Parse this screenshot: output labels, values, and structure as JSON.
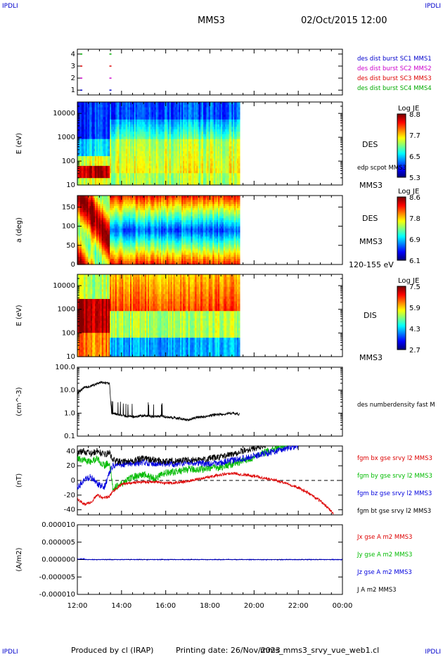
{
  "header": {
    "corner_tl": "IPDLI",
    "corner_tr": "IPDLI",
    "corner_bl": "IPDLI",
    "corner_br": "IPDLI",
    "spacecraft": "MMS3",
    "datetime": "02/Oct/2015 12:00"
  },
  "footer": {
    "produced": "Produced by cl (IRAP)",
    "printing": "Printing date: 26/Nov/2023",
    "file": "mms_mms3_srvy_vue_web1.cl"
  },
  "colors": {
    "mms1": "#0000cc",
    "mms2": "#cc00cc",
    "mms3": "#dd0000",
    "mms4": "#00aa00",
    "bx": "#dd0000",
    "by": "#00bb00",
    "bz": "#0000dd",
    "bt": "#000000"
  },
  "chart_data": [
    {
      "type": "scatter",
      "panel": "burst",
      "yticks": [
        "1",
        "2",
        "3",
        "4"
      ],
      "ylim": [
        0.6,
        4.4
      ],
      "legend": [
        "des dist burst SC1 MMS1",
        "des dist burst SC2 MMS2",
        "des dist burst SC3 MMS3",
        "des dist burst SC4 MMS4"
      ],
      "series": [
        {
          "level": 4,
          "times": [
            12.13,
            13.45
          ]
        },
        {
          "level": 3,
          "times": [
            12.13,
            13.45
          ]
        },
        {
          "level": 2,
          "times": [
            12.13,
            13.45
          ]
        },
        {
          "level": 1,
          "times": [
            12.13,
            13.45
          ]
        }
      ]
    },
    {
      "type": "heatmap",
      "panel": "des-energy",
      "ylabel": "E (eV)",
      "yticks": [
        "10",
        "100",
        "1000",
        "10000"
      ],
      "ylim": [
        10,
        30000
      ],
      "yscale": "log",
      "right_labels": [
        "DES",
        "edp scpot MMS3",
        "MMS3"
      ],
      "colorbar": {
        "title": "Log JE",
        "ticks": [
          "8.8",
          "7.7",
          "6.5",
          "5.3"
        ]
      },
      "data_end": 19.35
    },
    {
      "type": "heatmap",
      "panel": "des-pitch",
      "ylabel": "a (deg)",
      "yticks": [
        "0",
        "50",
        "100",
        "150"
      ],
      "ylim": [
        0,
        180
      ],
      "right_labels": [
        "DES",
        "MMS3",
        "120-155 eV"
      ],
      "colorbar": {
        "title": "Log JE",
        "ticks": [
          "8.6",
          "7.8",
          "6.9",
          "6.1"
        ]
      },
      "data_end": 19.35
    },
    {
      "type": "heatmap",
      "panel": "dis-energy",
      "ylabel": "E (eV)",
      "yticks": [
        "10",
        "100",
        "1000",
        "10000"
      ],
      "ylim": [
        10,
        30000
      ],
      "yscale": "log",
      "right_labels": [
        "DIS",
        "MMS3"
      ],
      "colorbar": {
        "title": "Log JE",
        "ticks": [
          "7.5",
          "5.9",
          "4.3",
          "2.7"
        ]
      },
      "data_end": 19.35
    },
    {
      "type": "line",
      "panel": "density",
      "ylabel": "(cm^-3)",
      "yticks": [
        "0.1",
        "1.0",
        "10.0",
        "100.0"
      ],
      "ylim": [
        0.1,
        100
      ],
      "yscale": "log",
      "legend": [
        "des numberdensity fast M"
      ],
      "series": [
        {
          "x": [
            12.0,
            12.3,
            12.6,
            12.9,
            13.1,
            13.3,
            13.45,
            13.55,
            13.8,
            14.2,
            14.6,
            15.0,
            15.4,
            15.8,
            16.2,
            16.6,
            17.0,
            17.4,
            17.8,
            18.2,
            18.6,
            19.0,
            19.35
          ],
          "y": [
            7,
            13,
            15,
            19,
            22,
            20,
            20,
            1.0,
            0.9,
            0.75,
            0.7,
            0.8,
            0.7,
            0.75,
            0.65,
            0.6,
            0.5,
            0.65,
            0.7,
            0.85,
            0.9,
            1.0,
            0.9
          ]
        }
      ]
    },
    {
      "type": "line",
      "panel": "bfield",
      "ylabel": "(nT)",
      "yticks": [
        "-40",
        "-20",
        "0",
        "20",
        "40"
      ],
      "ylim": [
        -47,
        47
      ],
      "legend": [
        "fgm bx gse srvy l2 MMS3",
        "fgm by gse srvy l2 MMS3",
        "fgm bz gse srvy l2 MMS3",
        "fgm bt gse srvy l2 MMS3"
      ],
      "series": [
        {
          "key": "bx",
          "x": [
            12.0,
            12.3,
            12.6,
            12.9,
            13.2,
            13.45,
            13.6,
            14.0,
            14.5,
            15.0,
            15.5,
            16.0,
            16.5,
            17.0,
            17.5,
            18.0,
            18.5,
            19.0,
            19.5,
            20.0,
            20.5,
            21.0,
            21.5,
            22.0,
            22.5,
            23.0,
            23.3,
            23.6
          ],
          "y": [
            -25,
            -33,
            -30,
            -20,
            -24,
            -22,
            -15,
            -5,
            -3,
            -2,
            -2,
            -4,
            -3,
            -1,
            2,
            5,
            8,
            10,
            8,
            6,
            3,
            0,
            -4,
            -10,
            -18,
            -28,
            -36,
            -46
          ]
        },
        {
          "key": "by",
          "x": [
            12.0,
            12.3,
            12.6,
            12.9,
            13.2,
            13.45,
            13.6,
            14.0,
            14.5,
            15.0,
            15.5,
            16.0,
            16.5,
            17.0,
            17.5,
            18.0,
            18.5,
            19.0,
            19.5,
            20.0,
            20.5,
            21.0,
            21.5
          ],
          "y": [
            30,
            28,
            25,
            30,
            20,
            25,
            -10,
            -5,
            5,
            8,
            3,
            10,
            12,
            15,
            15,
            17,
            18,
            22,
            26,
            32,
            38,
            45,
            48
          ]
        },
        {
          "key": "bz",
          "x": [
            12.0,
            12.3,
            12.6,
            12.9,
            13.2,
            13.45,
            13.6,
            14.0,
            14.5,
            15.0,
            15.5,
            16.0,
            16.5,
            17.0,
            17.5,
            18.0,
            18.5,
            19.0,
            19.5,
            20.0,
            20.5,
            21.0,
            21.5,
            22.0
          ],
          "y": [
            -10,
            0,
            5,
            -5,
            -10,
            10,
            20,
            22,
            22,
            25,
            23,
            22,
            23,
            25,
            24,
            22,
            24,
            27,
            30,
            33,
            37,
            40,
            44,
            48
          ]
        },
        {
          "key": "bt",
          "x": [
            12.0,
            12.3,
            12.6,
            12.9,
            13.2,
            13.45,
            13.6,
            14.0,
            14.5,
            15.0,
            15.5,
            16.0,
            16.5,
            17.0,
            17.5,
            18.0,
            18.5,
            19.0,
            19.5,
            20.0,
            20.5
          ],
          "y": [
            38,
            40,
            36,
            40,
            35,
            38,
            28,
            25,
            27,
            30,
            28,
            26,
            27,
            28,
            28,
            30,
            32,
            36,
            40,
            44,
            48
          ]
        }
      ],
      "zero_line": true
    },
    {
      "type": "line",
      "panel": "current",
      "ylabel": "(A/m2)",
      "yticks": [
        "-0.000010",
        "-0.000005",
        "0.000000",
        "0.000005",
        "0.000010"
      ],
      "ylim": [
        -1e-05,
        1e-05
      ],
      "legend": [
        "Jx gse A m2 MMS3",
        "Jy gse A m2 MMS3",
        "Jz gse A m2 MMS3",
        "J A m2 MMS3"
      ],
      "series": [
        {
          "key": "bz",
          "x": [
            12.0,
            24.0
          ],
          "y": [
            0.0,
            0.0
          ]
        }
      ]
    }
  ],
  "xaxis": {
    "ticks": [
      "12:00",
      "14:00",
      "16:00",
      "18:00",
      "20:00",
      "22:00",
      "00:00"
    ],
    "xlim": [
      12,
      24
    ]
  }
}
